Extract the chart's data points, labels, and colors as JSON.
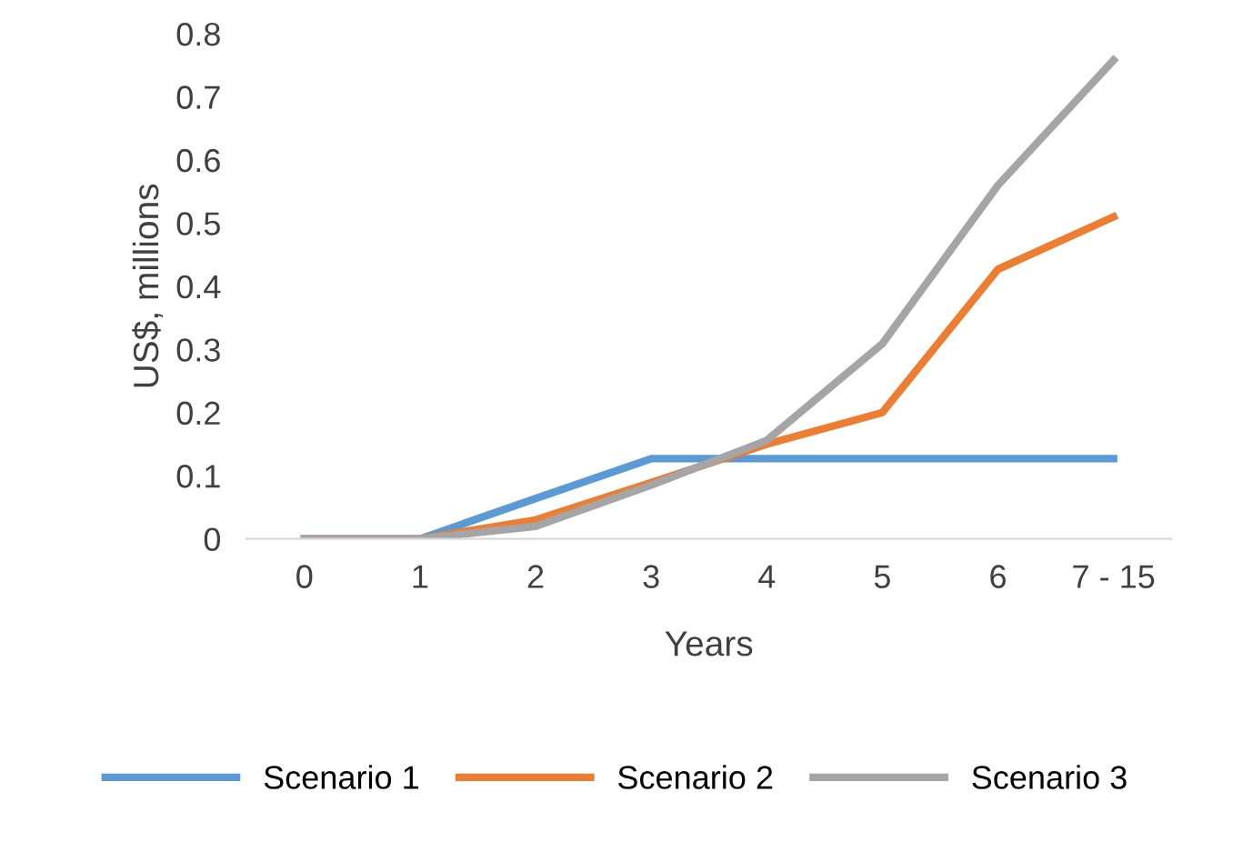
{
  "chart_data": {
    "type": "line",
    "xlabel": "Years",
    "ylabel": "US$, millions",
    "categories": [
      "0",
      "1",
      "2",
      "3",
      "4",
      "5",
      "6",
      "7 - 15"
    ],
    "series": [
      {
        "name": "Scenario 1",
        "color": "#5b9bd5",
        "values": [
          0,
          0,
          0.064,
          0.127,
          0.127,
          0.127,
          0.127,
          0.127
        ]
      },
      {
        "name": "Scenario 2",
        "color": "#ed7d31",
        "values": [
          0,
          0,
          0.03,
          0.089,
          0.15,
          0.2,
          0.427,
          0.51
        ]
      },
      {
        "name": "Scenario 3",
        "color": "#a5a5a5",
        "values": [
          0,
          0,
          0.02,
          0.085,
          0.156,
          0.309,
          0.56,
          0.758
        ]
      }
    ],
    "ylim": [
      0,
      0.8
    ],
    "yticks": [
      0,
      0.1,
      0.2,
      0.3,
      0.4,
      0.5,
      0.6,
      0.7,
      0.8
    ],
    "grid": false,
    "legend": "bottom",
    "marker": "none",
    "line_style": "solid"
  }
}
